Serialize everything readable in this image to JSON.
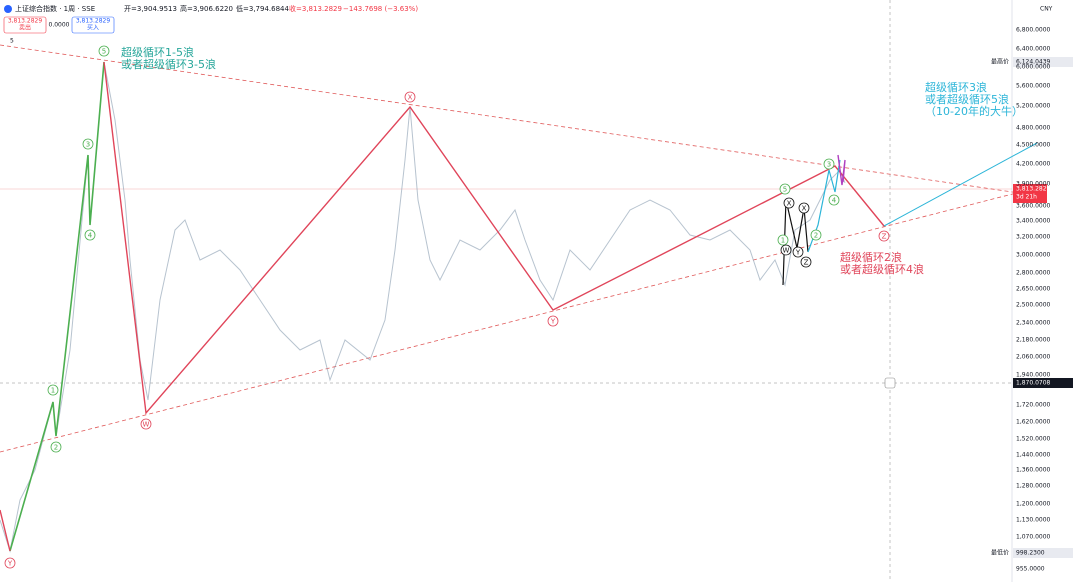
{
  "header": {
    "symbol": "上证综合指数 · 1周 · SSE",
    "open": "开=3,904.9513",
    "high": "高=3,906.6220",
    "low": "低=3,794.6844",
    "close": "收=3,813.2829",
    "change": "−143.7698 (−3.63%)",
    "indicators": "5"
  },
  "trade": {
    "sell_price": "3,813.2829",
    "sell": "卖出",
    "spread": "0.0000",
    "buy_price": "3,813.2829",
    "buy": "买入"
  },
  "currency": "CNY",
  "price_axis": {
    "ticks": [
      "6,800.0000",
      "6,400.0000",
      "6,000.0000",
      "5,600.0000",
      "5,200.0000",
      "4,800.0000",
      "4,500.0000",
      "4,200.0000",
      "3,900.0000",
      "3,600.0000",
      "3,400.0000",
      "3,200.0000",
      "3,000.0000",
      "2,800.0000",
      "2,650.0000",
      "2,500.0000",
      "2,340.0000",
      "2,180.0000",
      "2,060.0000",
      "1,940.0000",
      "1,720.0000",
      "1,620.0000",
      "1,520.0000",
      "1,440.0000",
      "1,360.0000",
      "1,280.0000",
      "1,200.0000",
      "1,130.0000",
      "1,070.0000",
      "955.0000"
    ],
    "high_label": "最高价",
    "high_value": "6,124.0439",
    "low_label": "最低价",
    "low_value": "998.2300",
    "last_price": "3,813.2829",
    "last_countdown": "3d 21h",
    "crosshair_price": "1,870.0708"
  },
  "annotations": [
    [
      "超级循环1-5浪",
      "或者超级循环3-5浪"
    ],
    [
      "超级循环3浪",
      "或者超级循环5浪",
      "（10-20年的大牛）"
    ],
    [
      "超级循环2浪",
      "或者超级循环4浪"
    ]
  ],
  "wave_labels": [
    "5",
    "3",
    "4",
    "1",
    "2",
    "W",
    "X",
    "Y",
    "Y",
    "Z",
    "5",
    "1",
    "2",
    "3",
    "4",
    "X",
    "W",
    "Y",
    "X",
    "Z"
  ]
}
